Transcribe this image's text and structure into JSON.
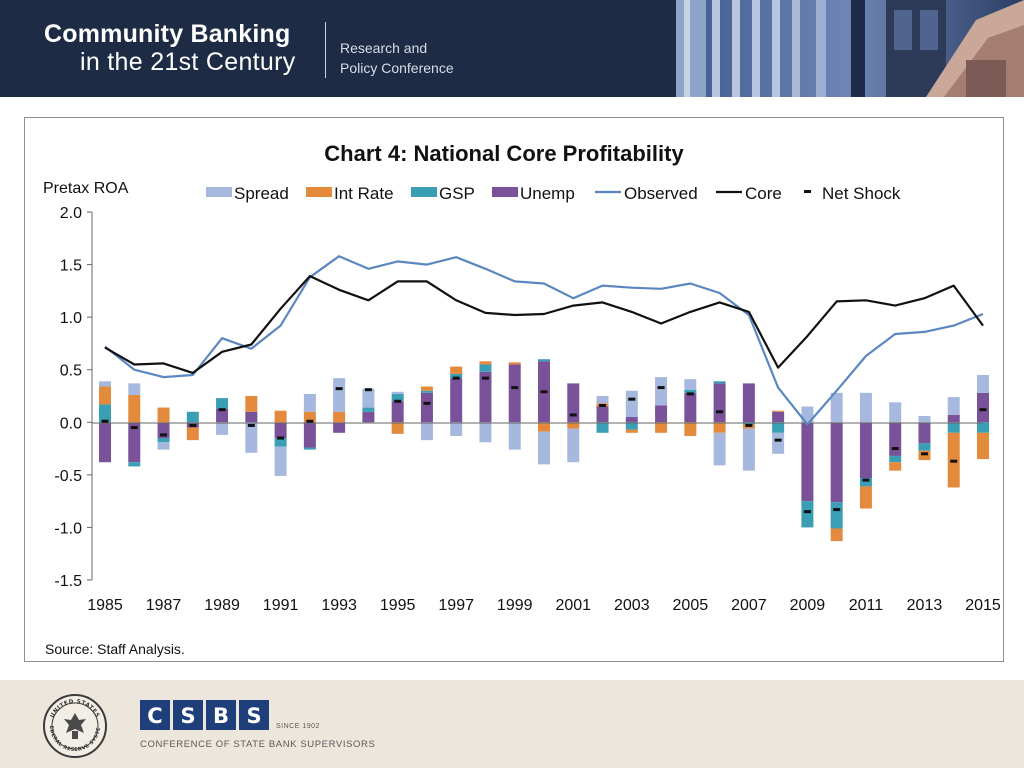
{
  "header": {
    "title_line1": "Community Banking",
    "title_line2": "in the 21st Century",
    "subtitle_line1": "Research and",
    "subtitle_line2": "Policy Conference"
  },
  "footer": {
    "csbs_letters": "CSBS",
    "since": "SINCE 1902",
    "tagline": "CONFERENCE OF STATE BANK SUPERVISORS",
    "seal_top_text": "UNITED STATES",
    "seal_bottom_text": "FEDERAL RESERVE SYSTEM"
  },
  "colors": {
    "spread": "#a6b8dd",
    "int_rate": "#e48a3d",
    "gsp": "#3a9eb4",
    "unemp": "#7a5299",
    "observed": "#5b87c0",
    "core": "#111111",
    "net_shock": "#111111"
  },
  "chart_data": {
    "type": "bar+line",
    "title": "Chart 4: National Core Profitability",
    "ylabel": "Pretax ROA",
    "xlabel": "",
    "source": "Source: Staff Analysis.",
    "ylim": [
      -1.5,
      2.0
    ],
    "yticks": [
      2.0,
      1.5,
      1.0,
      0.5,
      0.0,
      -0.5,
      -1.0,
      -1.5
    ],
    "ytick_labels": [
      "2.0",
      "1.5",
      "1.0",
      "0.5",
      "0.0",
      "-0.5",
      "-1.0",
      "-1.5"
    ],
    "xtick_labels": [
      "1985",
      "1987",
      "1989",
      "1991",
      "1993",
      "1995",
      "1997",
      "1999",
      "2001",
      "2003",
      "2005",
      "2007",
      "2009",
      "2011",
      "2013",
      "2015"
    ],
    "categories": [
      1985,
      1986,
      1987,
      1988,
      1989,
      1990,
      1991,
      1992,
      1993,
      1994,
      1995,
      1996,
      1997,
      1998,
      1999,
      2000,
      2001,
      2002,
      2003,
      2004,
      2005,
      2006,
      2007,
      2008,
      2009,
      2010,
      2011,
      2012,
      2013,
      2014,
      2015
    ],
    "legend": [
      "Spread",
      "Int Rate",
      "GSP",
      "Unemp",
      "Observed",
      "Core",
      "Net Shock"
    ],
    "stacked_series": [
      {
        "name": "Unemp",
        "values": [
          -0.38,
          -0.38,
          -0.15,
          -0.05,
          0.13,
          0.1,
          -0.15,
          -0.24,
          -0.1,
          0.1,
          0.2,
          0.28,
          0.42,
          0.48,
          0.55,
          0.58,
          0.37,
          0.15,
          0.05,
          0.16,
          0.28,
          0.37,
          0.37,
          0.1,
          -0.75,
          -0.76,
          -0.53,
          -0.32,
          -0.2,
          0.07,
          0.28
        ]
      },
      {
        "name": "GSP",
        "values": [
          0.17,
          -0.04,
          -0.04,
          0.1,
          0.1,
          0.0,
          -0.08,
          -0.02,
          0.0,
          0.04,
          0.07,
          0.02,
          0.04,
          0.07,
          0.0,
          0.02,
          0.0,
          -0.1,
          -0.07,
          0.0,
          0.03,
          0.02,
          -0.02,
          -0.1,
          -0.25,
          -0.25,
          -0.08,
          -0.06,
          -0.07,
          -0.1,
          -0.1
        ]
      },
      {
        "name": "Int Rate",
        "values": [
          0.17,
          0.26,
          0.14,
          -0.12,
          0.0,
          0.15,
          0.11,
          0.1,
          0.1,
          0.0,
          -0.11,
          0.04,
          0.07,
          0.03,
          0.02,
          -0.09,
          -0.06,
          0.03,
          -0.03,
          -0.1,
          -0.13,
          -0.1,
          -0.04,
          0.01,
          0.0,
          -0.12,
          -0.21,
          -0.08,
          -0.09,
          -0.52,
          -0.25
        ]
      },
      {
        "name": "Spread",
        "values": [
          0.05,
          0.11,
          -0.07,
          0.0,
          -0.12,
          -0.29,
          -0.28,
          0.17,
          0.32,
          0.18,
          0.02,
          -0.17,
          -0.13,
          -0.19,
          -0.26,
          -0.31,
          -0.32,
          0.07,
          0.25,
          0.27,
          0.1,
          -0.31,
          -0.4,
          -0.2,
          0.15,
          0.28,
          0.28,
          0.19,
          0.06,
          0.17,
          0.17
        ]
      }
    ],
    "net_shock": [
      0.01,
      -0.05,
      -0.12,
      -0.03,
      0.12,
      -0.03,
      -0.15,
      0.01,
      0.32,
      0.31,
      0.2,
      0.18,
      0.42,
      0.42,
      0.33,
      0.29,
      0.07,
      0.16,
      0.22,
      0.33,
      0.27,
      0.1,
      -0.03,
      -0.17,
      -0.85,
      -0.83,
      -0.55,
      -0.25,
      -0.3,
      -0.37,
      0.12
    ],
    "lines": [
      {
        "name": "Observed",
        "values": [
          0.72,
          0.5,
          0.43,
          0.45,
          0.8,
          0.7,
          0.92,
          1.38,
          1.58,
          1.46,
          1.53,
          1.5,
          1.57,
          1.46,
          1.34,
          1.32,
          1.18,
          1.3,
          1.28,
          1.27,
          1.32,
          1.23,
          1.02,
          0.33,
          -0.02,
          0.3,
          0.63,
          0.84,
          0.86,
          0.92,
          1.03
        ]
      },
      {
        "name": "Core",
        "values": [
          0.71,
          0.55,
          0.56,
          0.47,
          0.67,
          0.74,
          1.08,
          1.39,
          1.26,
          1.16,
          1.34,
          1.34,
          1.16,
          1.04,
          1.02,
          1.03,
          1.11,
          1.14,
          1.05,
          0.94,
          1.05,
          1.14,
          1.05,
          0.52,
          0.82,
          1.15,
          1.16,
          1.11,
          1.18,
          1.3,
          0.92
        ]
      }
    ]
  }
}
